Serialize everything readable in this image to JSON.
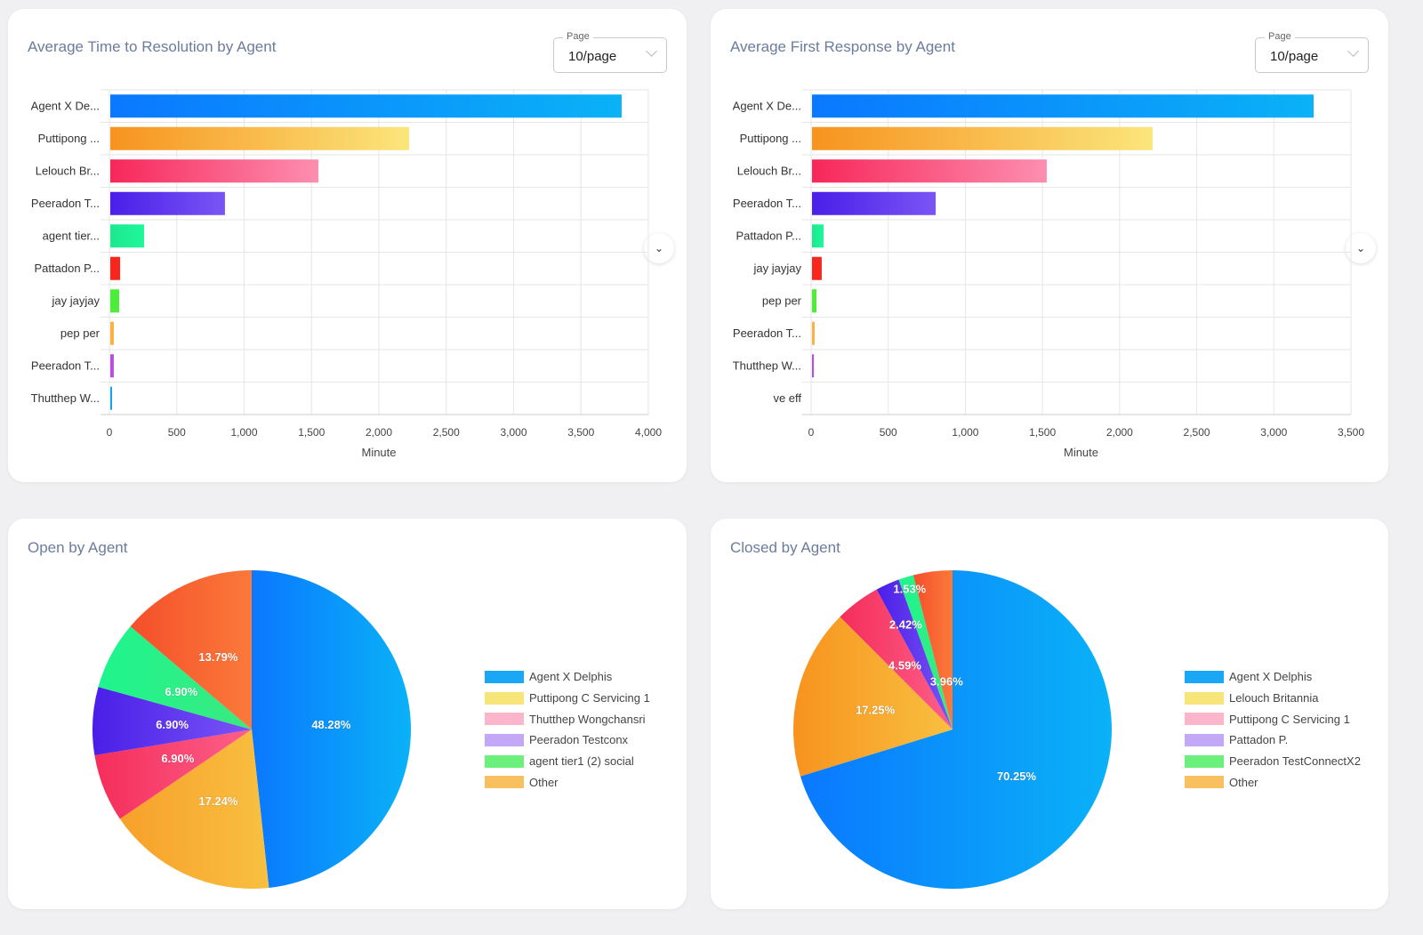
{
  "cards": {
    "resolution": {
      "title": "Average Time to Resolution by Agent",
      "pager_label": "Page",
      "pager_value": "10/page"
    },
    "first_response": {
      "title": "Average First Response by Agent",
      "pager_label": "Page",
      "pager_value": "10/page"
    },
    "open": {
      "title": "Open by Agent"
    },
    "closed": {
      "title": "Closed by Agent"
    }
  },
  "colors": {
    "background": "#f0f0f2",
    "title": "#6b7c9c"
  },
  "chart_data": [
    {
      "type": "bar",
      "orientation": "horizontal",
      "title": "Average Time to Resolution by Agent",
      "categories": [
        "Agent X De...",
        "Puttipong ...",
        "Lelouch Br...",
        "Peeradon T...",
        "agent tier...",
        "Pattadon P...",
        "jay jayjay",
        "pep per",
        "Peeradon T...",
        "Thutthep W..."
      ],
      "values": [
        3795,
        2218,
        1545,
        851,
        251,
        73,
        66,
        26,
        26,
        13
      ],
      "colors": [
        [
          "#0a78ff",
          "#0ab2f7"
        ],
        [
          "#f7931e",
          "#fbe67c"
        ],
        [
          "#f7275a",
          "#fd8fb0"
        ],
        [
          "#4a1ee8",
          "#7a55f5"
        ],
        [
          "#1de88f",
          "#1ef79a"
        ],
        [
          "#f7271e",
          "#f7271e"
        ],
        [
          "#4ded3a",
          "#4ded3a"
        ],
        [
          "#fbb040",
          "#fbb040"
        ],
        [
          "#b84de0",
          "#b84de0"
        ],
        [
          "#19a0f0",
          "#19a0f0"
        ]
      ],
      "xlabel": "Minute",
      "xlim": [
        0,
        4000
      ],
      "xticks": [
        "0",
        "500",
        "1,000",
        "1,500",
        "2,000",
        "2,500",
        "3,000",
        "3,500",
        "4,000"
      ],
      "grid": true
    },
    {
      "type": "bar",
      "orientation": "horizontal",
      "title": "Average First Response by Agent",
      "categories": [
        "Agent X De...",
        "Puttipong ...",
        "Lelouch Br...",
        "Peeradon T...",
        "Pattadon P...",
        "jay jayjay",
        "pep per",
        "Peeradon T...",
        "Thutthep W...",
        "ve eff"
      ],
      "values": [
        3252,
        2209,
        1522,
        802,
        75,
        63,
        29,
        17,
        12,
        0
      ],
      "colors": [
        [
          "#0a78ff",
          "#0ab2f7"
        ],
        [
          "#f7931e",
          "#fbe67c"
        ],
        [
          "#f7275a",
          "#fd8fb0"
        ],
        [
          "#4a1ee8",
          "#7a55f5"
        ],
        [
          "#1de88f",
          "#1ef79a"
        ],
        [
          "#f7271e",
          "#f7271e"
        ],
        [
          "#4ded3a",
          "#4ded3a"
        ],
        [
          "#fbb040",
          "#fbb040"
        ],
        [
          "#b84de0",
          "#b84de0"
        ],
        [
          "#19a0f0",
          "#19a0f0"
        ]
      ],
      "xlabel": "Minute",
      "xlim": [
        0,
        3500
      ],
      "xticks": [
        "0",
        "500",
        "1,000",
        "1,500",
        "2,000",
        "2,500",
        "3,000",
        "3,500"
      ],
      "grid": true
    },
    {
      "type": "pie",
      "title": "Open by Agent",
      "labels": [
        "Agent X Delphis",
        "Puttipong  C Servicing 1",
        "Thutthep Wongchansri",
        "Peeradon Testconx",
        "agent tier1 (2) social",
        "Other"
      ],
      "values": [
        48.28,
        17.24,
        6.9,
        6.9,
        6.9,
        13.79
      ],
      "data_labels": [
        "48.28%",
        "17.24%",
        "6.90%",
        "6.90%",
        "6.90%",
        "13.79%"
      ],
      "slice_colors": [
        [
          "#0a78ff",
          "#0ab2f7"
        ],
        [
          "#f7a02a",
          "#f8c040"
        ],
        [
          "#f52d5a",
          "#fd5f8a"
        ],
        [
          "#4a1ee8",
          "#7a55f5"
        ],
        [
          "#1ef58e",
          "#3aea80"
        ],
        [
          "#f54e2a",
          "#fb7a3a"
        ]
      ],
      "legend_colors": [
        "#1aa7f5",
        "#f8e57a",
        "#fbb6cc",
        "#c3a8f8",
        "#6cf07c",
        "#f9c060"
      ],
      "legend": "right"
    },
    {
      "type": "pie",
      "title": "Closed by Agent",
      "labels": [
        "Agent X Delphis",
        "Lelouch Britannia",
        "Puttipong  C Servicing 1",
        "Pattadon P.",
        "Peeradon TestConnectX2",
        "Other"
      ],
      "values": [
        70.25,
        17.25,
        4.59,
        2.42,
        1.53,
        3.96
      ],
      "data_labels": [
        "70.25%",
        "17.25%",
        "4.59%",
        "2.42%",
        "1.53%",
        "3.96%"
      ],
      "slice_colors": [
        [
          "#0a78ff",
          "#0ab2f7"
        ],
        [
          "#f7931e",
          "#f8c040"
        ],
        [
          "#f52d5a",
          "#fd5f8a"
        ],
        [
          "#4a1ee8",
          "#7a55f5"
        ],
        [
          "#1ef58e",
          "#3aea80"
        ],
        [
          "#f54e2a",
          "#fb7a3a"
        ]
      ],
      "legend_colors": [
        "#1aa7f5",
        "#f8e57a",
        "#fbb6cc",
        "#c3a8f8",
        "#6cf07c",
        "#f9c060"
      ],
      "legend": "right"
    }
  ]
}
